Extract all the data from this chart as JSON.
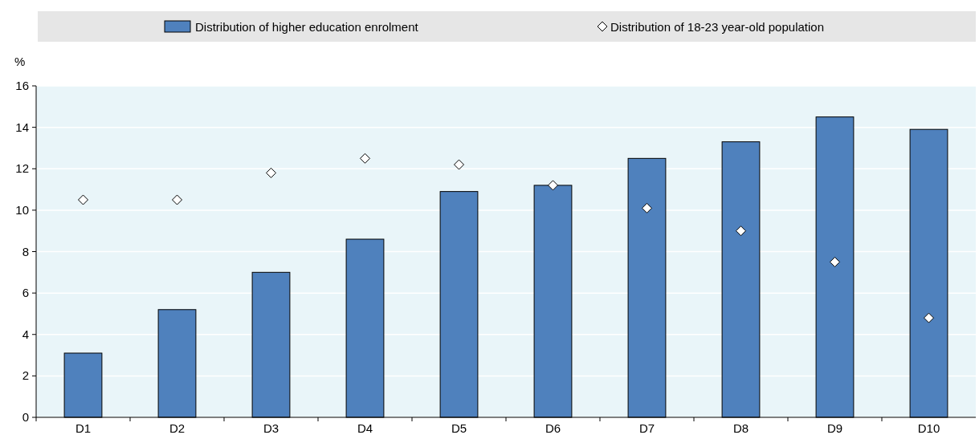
{
  "chart_data": {
    "type": "bar",
    "ylabel": "%",
    "categories": [
      "D1",
      "D2",
      "D3",
      "D4",
      "D5",
      "D6",
      "D7",
      "D8",
      "D9",
      "D10"
    ],
    "series": [
      {
        "name": "Distribution of higher education enrolment",
        "color": "#4f81bd",
        "values": [
          3.1,
          5.2,
          7.0,
          8.6,
          10.9,
          11.2,
          12.5,
          13.3,
          14.5,
          13.9
        ]
      },
      {
        "name": "Distribution of 18-23 year-old population",
        "type": "scatter",
        "color": "#ffffff",
        "marker": "diamond",
        "x": [
          "D1",
          "D2",
          "D3",
          "D4",
          "D5",
          "D6",
          "D7",
          "D8",
          "D9",
          "D10"
        ],
        "values": [
          10.5,
          10.5,
          11.8,
          12.5,
          12.2,
          11.2,
          10.1,
          9.0,
          7.5,
          4.8
        ]
      }
    ],
    "ylim": [
      0,
      16
    ],
    "yticks": [
      0,
      2,
      4,
      6,
      8,
      10,
      12,
      14,
      16
    ],
    "grid": "y",
    "legend": "top"
  }
}
